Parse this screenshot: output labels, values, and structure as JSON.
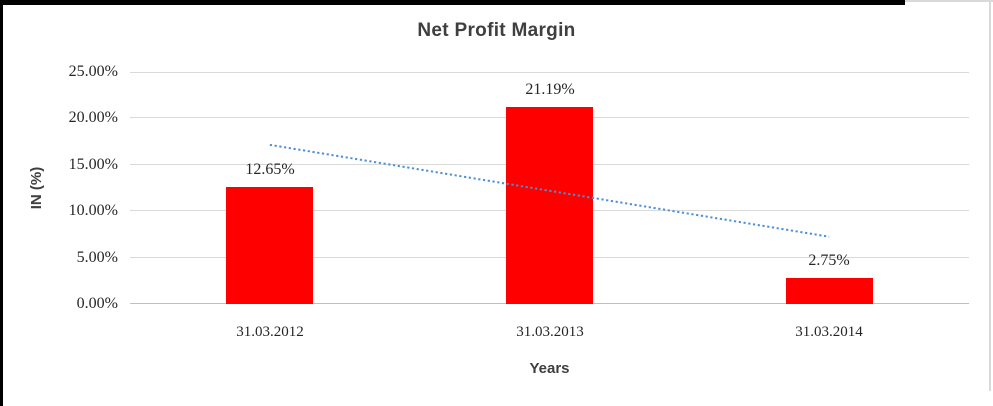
{
  "chart_data": {
    "type": "bar",
    "title": "Net Profit Margin",
    "xlabel": "Years",
    "ylabel": "IN (%)",
    "categories": [
      "31.03.2012",
      "31.03.2013",
      "31.03.2014"
    ],
    "values": [
      12.65,
      21.19,
      2.75
    ],
    "data_labels": [
      "12.65%",
      "21.19%",
      "2.75%"
    ],
    "ylim": [
      0,
      25
    ],
    "ytick_step": 5,
    "yticks": [
      "0.00%",
      "5.00%",
      "10.00%",
      "15.00%",
      "20.00%",
      "25.00%"
    ],
    "grid": true,
    "legend": "none",
    "bar_color": "#ff0000",
    "gridline_color": "#d9d9d9",
    "axis_line_color": "#c0c0c0",
    "label_color": "#262626",
    "title_color": "#3f3f3f",
    "trendline": {
      "type": "linear",
      "style": "dotted",
      "color": "#4a90d9",
      "start_value": 17.15,
      "end_value": 7.25
    }
  }
}
